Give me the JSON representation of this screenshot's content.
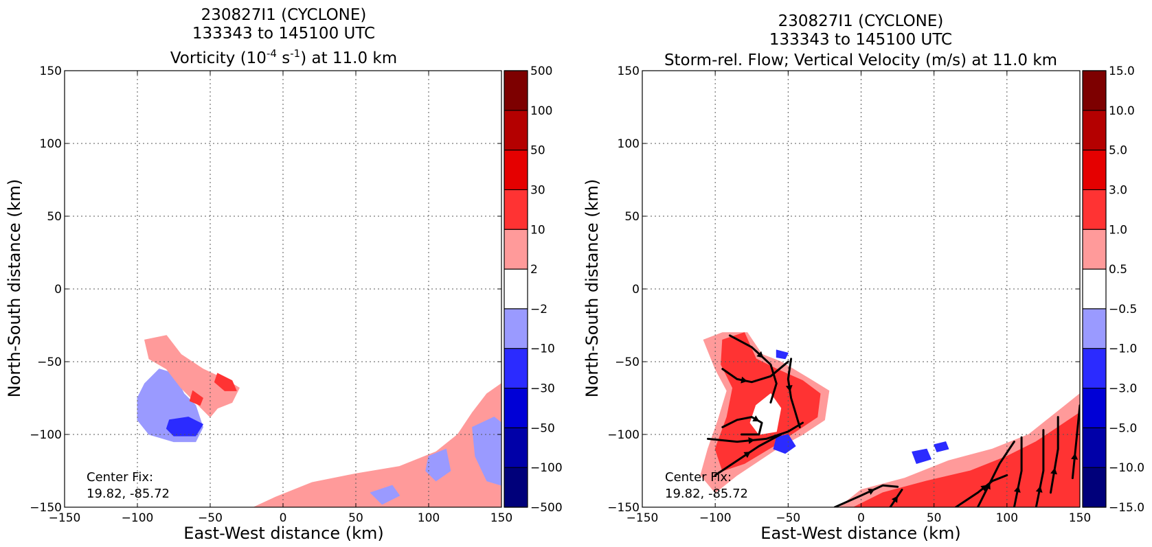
{
  "chart_data": [
    {
      "type": "heatmap",
      "title_lines": [
        "230827I1 (CYCLONE)",
        "133343 to 145100 UTC"
      ],
      "title_main_prefix": "Vorticity (10",
      "title_sup1": "-4",
      "title_mid": " s",
      "title_sup2": "-1",
      "title_suffix": ") at 11.0 km",
      "xlabel": "East-West distance (km)",
      "ylabel": "North-South distance (km)",
      "xlim": [
        -150,
        150
      ],
      "ylim": [
        -150,
        150
      ],
      "xticks": [
        -150,
        -100,
        -50,
        0,
        50,
        100,
        150
      ],
      "yticks": [
        -150,
        -100,
        -50,
        0,
        50,
        100,
        150
      ],
      "grid": true,
      "colorbar": {
        "levels": [
          "−500",
          "−100",
          "−50",
          "−30",
          "−10",
          "−2",
          "2",
          "10",
          "30",
          "50",
          "100",
          "500"
        ],
        "colors": [
          "#00007a",
          "#0000a8",
          "#0000d6",
          "#2b2bff",
          "#9a9aff",
          "#ffffff",
          "#ff9a9a",
          "#ff3333",
          "#e50000",
          "#b40000",
          "#7d0000"
        ]
      },
      "annotation": [
        "Center Fix:",
        "19.82, -85.72"
      ],
      "regions": [
        {
          "color": "#9a9aff",
          "points": [
            [
              -95,
              -65
            ],
            [
              -85,
              -55
            ],
            [
              -75,
              -58
            ],
            [
              -68,
              -72
            ],
            [
              -60,
              -80
            ],
            [
              -55,
              -95
            ],
            [
              -60,
              -105
            ],
            [
              -75,
              -105
            ],
            [
              -92,
              -100
            ],
            [
              -100,
              -90
            ],
            [
              -100,
              -75
            ]
          ]
        },
        {
          "color": "#2b2bff",
          "points": [
            [
              -78,
              -90
            ],
            [
              -65,
              -88
            ],
            [
              -55,
              -93
            ],
            [
              -60,
              -101
            ],
            [
              -75,
              -101
            ],
            [
              -80,
              -96
            ]
          ]
        },
        {
          "color": "#ff9a9a",
          "points": [
            [
              -95,
              -35
            ],
            [
              -80,
              -32
            ],
            [
              -70,
              -45
            ],
            [
              -55,
              -55
            ],
            [
              -40,
              -62
            ],
            [
              -30,
              -68
            ],
            [
              -35,
              -78
            ],
            [
              -45,
              -82
            ],
            [
              -50,
              -88
            ],
            [
              -60,
              -78
            ],
            [
              -70,
              -68
            ],
            [
              -80,
              -55
            ],
            [
              -92,
              -48
            ]
          ]
        },
        {
          "color": "#ff3333",
          "points": [
            [
              -45,
              -58
            ],
            [
              -35,
              -63
            ],
            [
              -32,
              -70
            ],
            [
              -40,
              -70
            ],
            [
              -47,
              -64
            ]
          ]
        },
        {
          "color": "#ff3333",
          "points": [
            [
              -62,
              -70
            ],
            [
              -55,
              -75
            ],
            [
              -57,
              -80
            ],
            [
              -64,
              -77
            ]
          ]
        },
        {
          "color": "#ff9a9a",
          "points": [
            [
              -20,
              -150
            ],
            [
              -5,
              -143
            ],
            [
              20,
              -133
            ],
            [
              50,
              -127
            ],
            [
              80,
              -122
            ],
            [
              105,
              -112
            ],
            [
              120,
              -100
            ],
            [
              130,
              -85
            ],
            [
              140,
              -72
            ],
            [
              150,
              -65
            ],
            [
              150,
              -150
            ]
          ]
        },
        {
          "color": "#9a9aff",
          "points": [
            [
              100,
              -115
            ],
            [
              112,
              -110
            ],
            [
              115,
              -125
            ],
            [
              105,
              -132
            ],
            [
              98,
              -125
            ]
          ]
        },
        {
          "color": "#9a9aff",
          "points": [
            [
              130,
              -95
            ],
            [
              145,
              -88
            ],
            [
              150,
              -92
            ],
            [
              150,
              -135
            ],
            [
              140,
              -132
            ],
            [
              132,
              -115
            ]
          ]
        },
        {
          "color": "#9a9aff",
          "points": [
            [
              60,
              -140
            ],
            [
              75,
              -135
            ],
            [
              80,
              -142
            ],
            [
              68,
              -148
            ]
          ]
        }
      ]
    },
    {
      "type": "heatmap",
      "title_lines": [
        "230827I1 (CYCLONE)",
        "133343 to 145100 UTC"
      ],
      "title_main": "Storm-rel. Flow; Vertical Velocity (m/s) at 11.0 km",
      "xlabel": "East-West distance (km)",
      "ylabel": "North-South distance (km)",
      "xlim": [
        -150,
        150
      ],
      "ylim": [
        -150,
        150
      ],
      "xticks": [
        -150,
        -100,
        -50,
        0,
        50,
        100,
        150
      ],
      "yticks": [
        -150,
        -100,
        -50,
        0,
        50,
        100,
        150
      ],
      "grid": true,
      "colorbar": {
        "levels": [
          "−15.0",
          "−10.0",
          "−5.0",
          "−3.0",
          "−1.0",
          "−0.5",
          "0.5",
          "1.0",
          "3.0",
          "5.0",
          "10.0",
          "15.0"
        ],
        "colors": [
          "#00007a",
          "#0000a8",
          "#0000d6",
          "#2b2bff",
          "#9a9aff",
          "#ffffff",
          "#ff9a9a",
          "#ff3333",
          "#e50000",
          "#b40000",
          "#7d0000"
        ]
      },
      "annotation": [
        "Center Fix:",
        "19.82, -85.72"
      ],
      "regions": [
        {
          "color": "#ff9a9a",
          "points": [
            [
              -108,
              -35
            ],
            [
              -95,
              -30
            ],
            [
              -78,
              -30
            ],
            [
              -68,
              -45
            ],
            [
              -55,
              -50
            ],
            [
              -35,
              -62
            ],
            [
              -22,
              -70
            ],
            [
              -25,
              -90
            ],
            [
              -40,
              -100
            ],
            [
              -55,
              -108
            ],
            [
              -70,
              -118
            ],
            [
              -85,
              -128
            ],
            [
              -100,
              -140
            ],
            [
              -110,
              -128
            ],
            [
              -105,
              -110
            ],
            [
              -98,
              -90
            ],
            [
              -92,
              -70
            ],
            [
              -100,
              -55
            ]
          ]
        },
        {
          "color": "#ff3333",
          "points": [
            [
              -95,
              -35
            ],
            [
              -80,
              -30
            ],
            [
              -72,
              -48
            ],
            [
              -58,
              -55
            ],
            [
              -40,
              -63
            ],
            [
              -28,
              -72
            ],
            [
              -30,
              -88
            ],
            [
              -45,
              -98
            ],
            [
              -60,
              -108
            ],
            [
              -80,
              -120
            ],
            [
              -95,
              -125
            ],
            [
              -100,
              -110
            ],
            [
              -92,
              -88
            ],
            [
              -88,
              -68
            ],
            [
              -96,
              -52
            ]
          ]
        },
        {
          "color": "#ffffff",
          "points": [
            [
              -72,
              -80
            ],
            [
              -62,
              -72
            ],
            [
              -55,
              -82
            ],
            [
              -58,
              -98
            ],
            [
              -70,
              -100
            ],
            [
              -76,
              -92
            ]
          ]
        },
        {
          "color": "#2b2bff",
          "points": [
            [
              -58,
              -102
            ],
            [
              -50,
              -100
            ],
            [
              -45,
              -108
            ],
            [
              -52,
              -113
            ],
            [
              -60,
              -110
            ]
          ]
        },
        {
          "color": "#2b2bff",
          "points": [
            [
              -58,
              -42
            ],
            [
              -50,
              -44
            ],
            [
              -52,
              -48
            ],
            [
              -58,
              -47
            ]
          ]
        },
        {
          "color": "#ff9a9a",
          "points": [
            [
              -15,
              -150
            ],
            [
              0,
              -138
            ],
            [
              30,
              -130
            ],
            [
              60,
              -118
            ],
            [
              90,
              -110
            ],
            [
              115,
              -100
            ],
            [
              130,
              -88
            ],
            [
              140,
              -80
            ],
            [
              150,
              -72
            ],
            [
              150,
              -150
            ]
          ]
        },
        {
          "color": "#ff3333",
          "points": [
            [
              -5,
              -150
            ],
            [
              15,
              -140
            ],
            [
              45,
              -132
            ],
            [
              75,
              -125
            ],
            [
              100,
              -115
            ],
            [
              120,
              -105
            ],
            [
              135,
              -95
            ],
            [
              150,
              -85
            ],
            [
              150,
              -150
            ]
          ]
        },
        {
          "color": "#2b2bff",
          "points": [
            [
              35,
              -112
            ],
            [
              45,
              -110
            ],
            [
              48,
              -117
            ],
            [
              38,
              -120
            ]
          ]
        },
        {
          "color": "#2b2bff",
          "points": [
            [
              50,
              -107
            ],
            [
              58,
              -105
            ],
            [
              60,
              -110
            ],
            [
              52,
              -112
            ]
          ]
        }
      ],
      "streamlines": [
        [
          [
            -90,
            -32
          ],
          [
            -75,
            -40
          ],
          [
            -62,
            -52
          ],
          [
            -58,
            -65
          ],
          [
            -62,
            -78
          ]
        ],
        [
          [
            -95,
            -95
          ],
          [
            -85,
            -90
          ],
          [
            -75,
            -88
          ],
          [
            -68,
            -92
          ],
          [
            -70,
            -100
          ],
          [
            -82,
            -100
          ]
        ],
        [
          [
            -105,
            -103
          ],
          [
            -85,
            -105
          ],
          [
            -65,
            -103
          ],
          [
            -50,
            -98
          ],
          [
            -40,
            -92
          ]
        ],
        [
          [
            -100,
            -128
          ],
          [
            -85,
            -118
          ],
          [
            -70,
            -108
          ],
          [
            -55,
            -100
          ]
        ],
        [
          [
            -95,
            -55
          ],
          [
            -85,
            -62
          ],
          [
            -75,
            -64
          ],
          [
            -62,
            -60
          ],
          [
            -50,
            -50
          ]
        ],
        [
          [
            -48,
            -48
          ],
          [
            -50,
            -62
          ],
          [
            -48,
            -75
          ],
          [
            -45,
            -85
          ],
          [
            -42,
            -95
          ]
        ],
        [
          [
            -18,
            -150
          ],
          [
            0,
            -142
          ],
          [
            15,
            -135
          ],
          [
            25,
            -136
          ]
        ],
        [
          [
            20,
            -150
          ],
          [
            28,
            -138
          ]
        ],
        [
          [
            65,
            -150
          ],
          [
            80,
            -140
          ],
          [
            90,
            -132
          ],
          [
            100,
            -128
          ]
        ],
        [
          [
            80,
            -150
          ],
          [
            95,
            -120
          ],
          [
            105,
            -105
          ]
        ],
        [
          [
            105,
            -150
          ],
          [
            110,
            -125
          ],
          [
            110,
            -102
          ]
        ],
        [
          [
            120,
            -150
          ],
          [
            125,
            -125
          ],
          [
            125,
            -97
          ]
        ],
        [
          [
            130,
            -140
          ],
          [
            135,
            -110
          ],
          [
            135,
            -88
          ]
        ],
        [
          [
            145,
            -130
          ],
          [
            148,
            -100
          ],
          [
            150,
            -80
          ]
        ]
      ]
    }
  ]
}
